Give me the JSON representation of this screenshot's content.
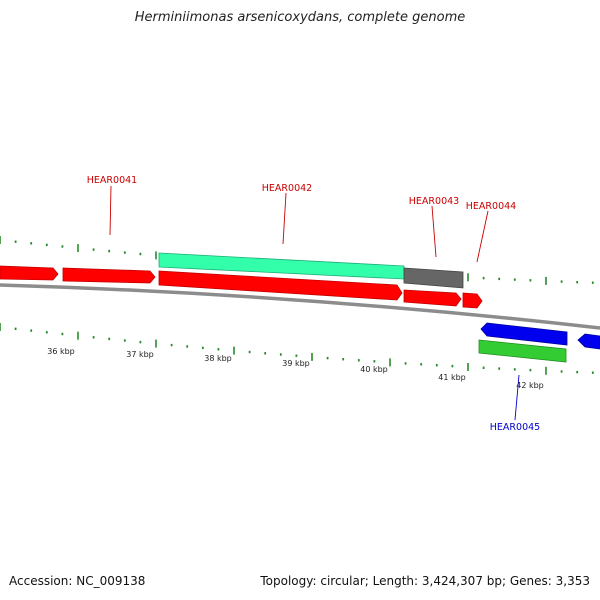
{
  "title": "Herminiimonas arsenicoxydans, complete genome",
  "footer": {
    "accession": "Accession: NC_009138",
    "summary": "Topology: circular; Length: 3,424,307 bp; Genes: 3,353"
  },
  "colors": {
    "cds": "#ff0000",
    "cds_edge": "#c40000",
    "rrna": "#33ffaa",
    "trna": "#666666",
    "reverse": "#0000ee",
    "gene_green": "#33cc33",
    "ticks": "#2a8a2a",
    "backbone": "#8c8c8c",
    "label_forward": "#cc0000",
    "label_reverse": "#0000cc"
  },
  "kbp_labels": [
    "36 kbp",
    "37 kbp",
    "38 kbp",
    "39 kbp",
    "40 kbp",
    "41 kbp",
    "42 kbp"
  ],
  "gene_labels": [
    {
      "id": "HEAR0041",
      "strand": "forward"
    },
    {
      "id": "HEAR0042",
      "strand": "forward"
    },
    {
      "id": "HEAR0043",
      "strand": "forward"
    },
    {
      "id": "HEAR0044",
      "strand": "forward"
    },
    {
      "id": "HEAR0045",
      "strand": "reverse"
    }
  ]
}
